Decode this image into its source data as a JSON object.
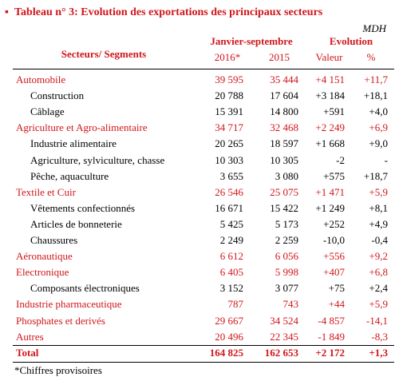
{
  "header": {
    "title": "Tableau n° 3: Evolution des exportations des principaux secteurs",
    "unit": "MDH",
    "col_sector": "Secteurs/ Segments",
    "col_period": "Janvier-septembre",
    "col_evolution": "Evolution",
    "col_2016": "2016*",
    "col_2015": "2015",
    "col_value": "Valeur",
    "col_pct": "%"
  },
  "groups": [
    {
      "name": "Automobile",
      "values": [
        "39 595",
        "35 444",
        "+4 151",
        "+11,7"
      ],
      "items": [
        {
          "name": "Construction",
          "values": [
            "20 788",
            "17 604",
            "+3 184",
            "+18,1"
          ]
        },
        {
          "name": "Câblage",
          "values": [
            "15 391",
            "14 800",
            "+591",
            "+4,0"
          ]
        }
      ]
    },
    {
      "name": "Agriculture et Agro-alimentaire",
      "values": [
        "34 717",
        "32 468",
        "+2 249",
        "+6,9"
      ],
      "items": [
        {
          "name": "Industrie alimentaire",
          "values": [
            "20 265",
            "18 597",
            "+1 668",
            "+9,0"
          ]
        },
        {
          "name": "Agriculture, sylviculture, chasse",
          "values": [
            "10 303",
            "10 305",
            "-2",
            "-"
          ]
        },
        {
          "name": "Pêche, aquaculture",
          "values": [
            "3 655",
            "3 080",
            "+575",
            "+18,7"
          ]
        }
      ]
    },
    {
      "name": "Textile et Cuir",
      "values": [
        "26 546",
        "25 075",
        "+1 471",
        "+5,9"
      ],
      "items": [
        {
          "name": "Vêtements confectionnés",
          "values": [
            "16 671",
            "15 422",
            "+1 249",
            "+8,1"
          ]
        },
        {
          "name": "Articles de bonneterie",
          "values": [
            "5 425",
            "5 173",
            "+252",
            "+4,9"
          ]
        },
        {
          "name": "Chaussures",
          "values": [
            "2 249",
            "2 259",
            "-10,0",
            "-0,4"
          ]
        }
      ]
    },
    {
      "name": "Aéronautique",
      "values": [
        "6 612",
        "6 056",
        "+556",
        "+9,2"
      ],
      "items": []
    },
    {
      "name": "Electronique",
      "values": [
        "6 405",
        "5 998",
        "+407",
        "+6,8"
      ],
      "items": [
        {
          "name": "Composants électroniques",
          "values": [
            "3 152",
            "3 077",
            "+75",
            "+2,4"
          ]
        }
      ]
    },
    {
      "name": "Industrie pharmaceutique",
      "values": [
        "787",
        "743",
        "+44",
        "+5,9"
      ],
      "items": []
    },
    {
      "name": "Phosphates et derivés",
      "values": [
        "29 667",
        "34 524",
        "-4 857",
        "-14,1"
      ],
      "items": []
    },
    {
      "name": "Autres",
      "values": [
        "20 496",
        "22 345",
        "-1 849",
        "-8,3"
      ],
      "items": []
    }
  ],
  "total": {
    "name": "Total",
    "values": [
      "164 825",
      "162 653",
      "+2 172",
      "+1,3"
    ]
  },
  "footnote": "*Chiffres provisoires"
}
